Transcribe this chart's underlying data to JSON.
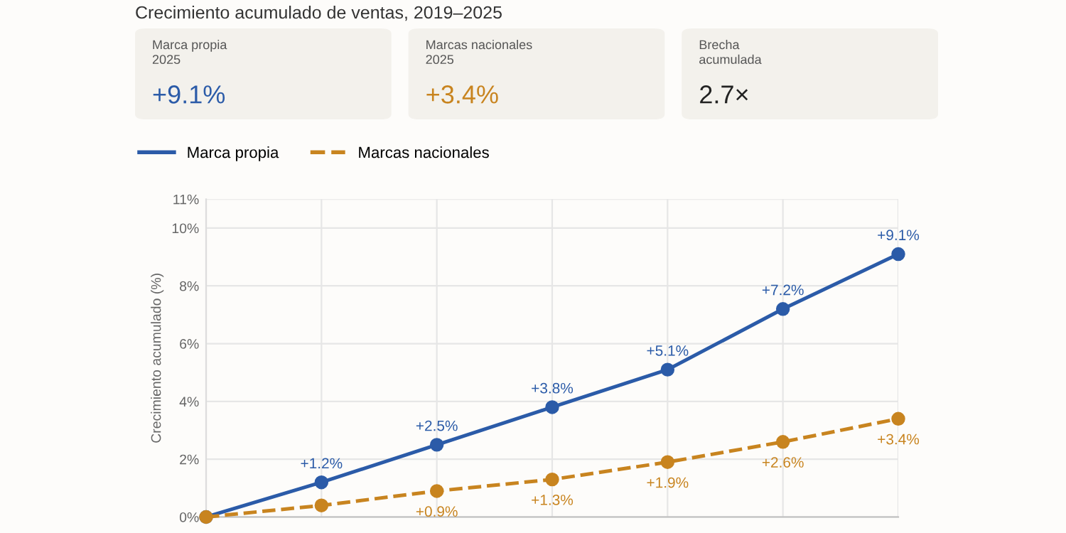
{
  "chart_data": {
    "type": "line",
    "title": "Crecimiento acumulado de ventas, 2019–2025",
    "annotations": [
      "Marca propia\n2025",
      "+9.1%",
      "Marcas nacionales\n2025",
      "+3.4%",
      "Brecha\nacumulada",
      "2.7×"
    ],
    "ylabel": "Crecimiento acumulado (%)",
    "categories": [
      null,
      null,
      null,
      null,
      null,
      null,
      null
    ],
    "series": [
      {
        "name": "Marca propia",
        "color": "#2b5ba8",
        "line_style": "solid",
        "values": [
          0,
          1.2,
          2.5,
          3.8,
          5.1,
          7.2,
          9.1
        ],
        "value_labels": [
          null,
          "+1.2%",
          "+2.5%",
          "+3.8%",
          "+5.1%",
          "+7.2%",
          "+9.1%"
        ]
      },
      {
        "name": "Marcas nacionales",
        "color": "#c8841f",
        "line_style": "dashed",
        "values": [
          0,
          0.4,
          0.9,
          1.3,
          1.9,
          2.6,
          3.4
        ],
        "value_labels": [
          null,
          null,
          "+0.9%",
          "+1.3%",
          "+1.9%",
          "+2.6%",
          "+3.4%"
        ]
      }
    ],
    "ylim": [
      0,
      11
    ],
    "yticks": [
      {
        "value": 0,
        "label": "0%"
      },
      {
        "value": 2,
        "label": "2%"
      },
      {
        "value": 4,
        "label": "4%"
      },
      {
        "value": 6,
        "label": "6%"
      },
      {
        "value": 8,
        "label": "8%"
      },
      {
        "value": 10,
        "label": "10%"
      },
      {
        "value": 11,
        "label": "11%"
      }
    ],
    "grid": true,
    "legend": "top left",
    "marker": "circle"
  }
}
